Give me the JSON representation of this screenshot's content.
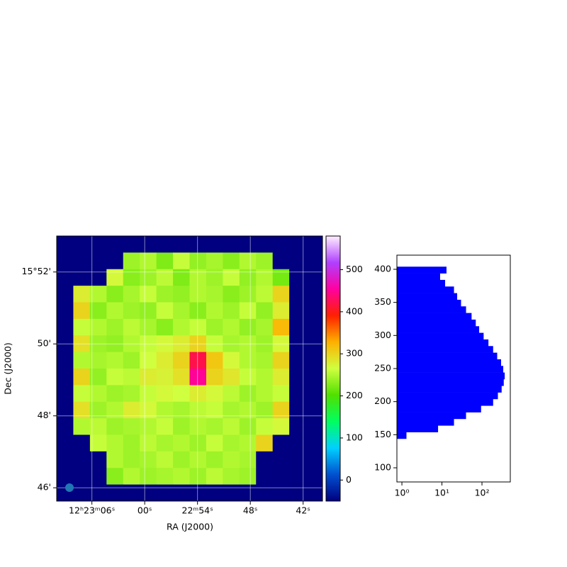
{
  "chart_data": [
    {
      "type": "heatmap",
      "xlabel": "RA (J2000)",
      "ylabel": "Dec (J2000)",
      "xlim": [
        130,
        99.8
      ],
      "ylim": [
        45.63,
        53.0
      ],
      "xticks": [
        {
          "value": 126,
          "label": "12ʰ23ᵐ06ˢ"
        },
        {
          "value": 120,
          "label": "00ˢ"
        },
        {
          "value": 114,
          "label": "22ᵐ54ˢ"
        },
        {
          "value": 108,
          "label": "48ˢ"
        },
        {
          "value": 102,
          "label": "42ˢ"
        }
      ],
      "yticks": [
        {
          "value": 52,
          "label": "15°52'"
        },
        {
          "value": 50,
          "label": "50'"
        },
        {
          "value": 48,
          "label": "48'"
        },
        {
          "value": 46,
          "label": "46'"
        }
      ],
      "grid": true,
      "clim": [
        -50,
        580
      ],
      "cbar_ticks": [
        0,
        100,
        200,
        300,
        400,
        500
      ],
      "cmap_colors": [
        "#000080",
        "#0050d0",
        "#00d0ff",
        "#00ff60",
        "#50e000",
        "#d0ff40",
        "#ffb000",
        "#ff2000",
        "#ff00a0",
        "#b040ff",
        "#fff0ff"
      ],
      "values": [
        [
          -50,
          -50,
          -50,
          -50,
          -50,
          -50,
          -50,
          -50,
          -50,
          -50,
          -50,
          -50,
          -50,
          -50,
          -50,
          -50
        ],
        [
          -50,
          -50,
          -50,
          -50,
          240,
          250,
          225,
          260,
          235,
          245,
          230,
          250,
          240,
          -50,
          -50,
          -50
        ],
        [
          -50,
          -50,
          -50,
          270,
          230,
          240,
          255,
          225,
          250,
          240,
          260,
          235,
          250,
          220,
          -50,
          -50
        ],
        [
          -50,
          280,
          250,
          230,
          245,
          260,
          240,
          235,
          250,
          245,
          230,
          240,
          255,
          300,
          -50,
          -50
        ],
        [
          -50,
          300,
          230,
          250,
          240,
          235,
          260,
          245,
          230,
          250,
          240,
          260,
          235,
          280,
          -50,
          -50
        ],
        [
          -50,
          260,
          250,
          240,
          255,
          245,
          230,
          250,
          260,
          240,
          250,
          235,
          245,
          320,
          -50,
          -50
        ],
        [
          -50,
          290,
          240,
          235,
          250,
          260,
          270,
          280,
          300,
          260,
          245,
          250,
          240,
          270,
          -50,
          -50
        ],
        [
          -50,
          250,
          245,
          250,
          240,
          265,
          280,
          300,
          420,
          310,
          270,
          250,
          245,
          300,
          -50,
          -50
        ],
        [
          -50,
          300,
          235,
          260,
          255,
          280,
          275,
          290,
          450,
          300,
          285,
          260,
          250,
          280,
          -50,
          -50
        ],
        [
          -50,
          260,
          250,
          240,
          245,
          260,
          270,
          265,
          280,
          270,
          255,
          240,
          250,
          260,
          -50,
          -50
        ],
        [
          -50,
          290,
          240,
          250,
          280,
          270,
          250,
          245,
          255,
          260,
          245,
          250,
          240,
          300,
          -50,
          -50
        ],
        [
          -50,
          250,
          255,
          240,
          245,
          250,
          260,
          240,
          250,
          245,
          255,
          240,
          260,
          270,
          -50,
          -50
        ],
        [
          -50,
          -50,
          260,
          250,
          240,
          255,
          245,
          250,
          240,
          260,
          245,
          250,
          300,
          -50,
          -50,
          -50
        ],
        [
          -50,
          -50,
          -50,
          250,
          240,
          245,
          255,
          240,
          250,
          240,
          250,
          245,
          -50,
          -50,
          -50,
          -50
        ],
        [
          -50,
          -50,
          -50,
          230,
          250,
          240,
          245,
          250,
          240,
          255,
          245,
          240,
          -50,
          -50,
          -50,
          -50
        ],
        [
          -50,
          -50,
          -50,
          -50,
          -50,
          -50,
          -50,
          -50,
          -50,
          -50,
          -50,
          -50,
          -50,
          -50,
          -50,
          -50
        ]
      ]
    },
    {
      "type": "histogram",
      "orientation": "horizontal",
      "xscale": "log",
      "color": "#0000ff",
      "bins": [
        144,
        154,
        164,
        174,
        184,
        194,
        204,
        214,
        224,
        234,
        244,
        254,
        264,
        274,
        284,
        294,
        304,
        314,
        324,
        334,
        344,
        354,
        364,
        374,
        384,
        394,
        404
      ],
      "counts": [
        1.3,
        8,
        20,
        40,
        95,
        190,
        250,
        310,
        350,
        370,
        340,
        300,
        240,
        190,
        145,
        110,
        85,
        70,
        55,
        40,
        30,
        24,
        20,
        12,
        9,
        13
      ],
      "xlim": [
        0.75,
        510
      ],
      "ylim": [
        78.6,
        421.4
      ],
      "xticks": [
        {
          "value": 1,
          "label": "10⁰"
        },
        {
          "value": 10,
          "label": "10¹"
        },
        {
          "value": 100,
          "label": "10²"
        }
      ],
      "yticks": [
        100,
        150,
        200,
        250,
        300,
        350,
        400
      ]
    }
  ]
}
